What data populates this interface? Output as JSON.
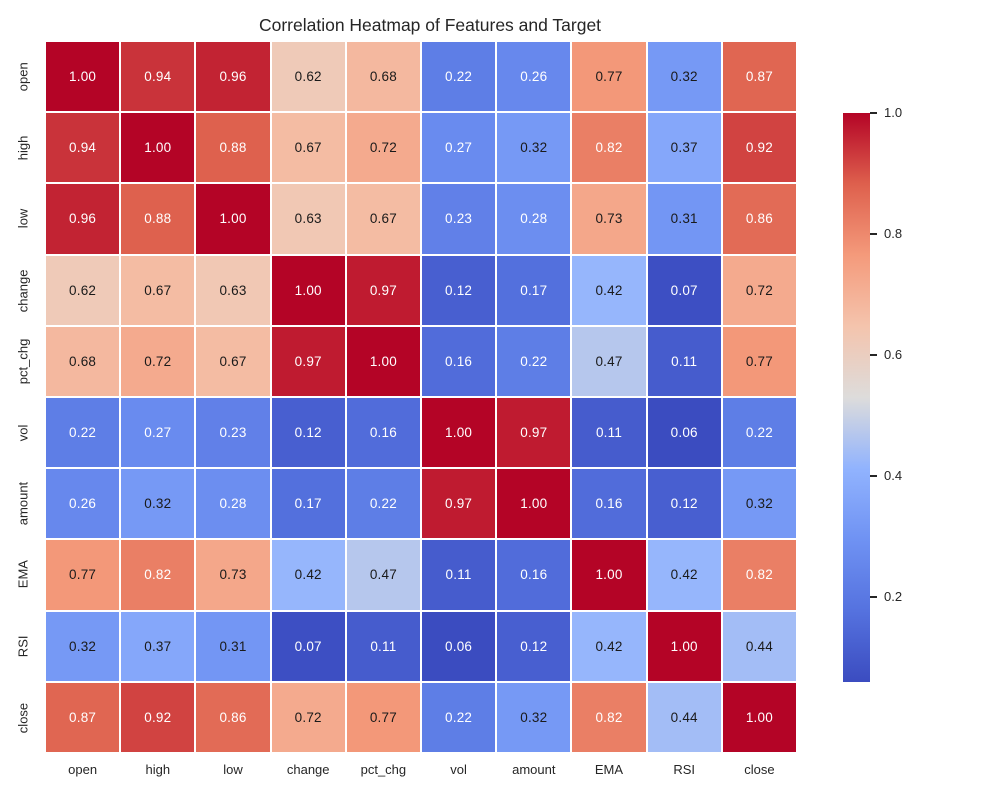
{
  "figure": {
    "background": "#ffffff",
    "text_color": "#262626"
  },
  "chart_data": {
    "type": "heatmap",
    "title": "Correlation Heatmap of Features and Target",
    "categories": [
      "open",
      "high",
      "low",
      "change",
      "pct_chg",
      "vol",
      "amount",
      "EMA",
      "RSI",
      "close"
    ],
    "matrix": [
      [
        1.0,
        0.94,
        0.96,
        0.62,
        0.68,
        0.22,
        0.26,
        0.77,
        0.32,
        0.87
      ],
      [
        0.94,
        1.0,
        0.88,
        0.67,
        0.72,
        0.27,
        0.32,
        0.82,
        0.37,
        0.92
      ],
      [
        0.96,
        0.88,
        1.0,
        0.63,
        0.67,
        0.23,
        0.28,
        0.73,
        0.31,
        0.86
      ],
      [
        0.62,
        0.67,
        0.63,
        1.0,
        0.97,
        0.12,
        0.17,
        0.42,
        0.07,
        0.72
      ],
      [
        0.68,
        0.72,
        0.67,
        0.97,
        1.0,
        0.16,
        0.22,
        0.47,
        0.11,
        0.77
      ],
      [
        0.22,
        0.27,
        0.23,
        0.12,
        0.16,
        1.0,
        0.97,
        0.11,
        0.06,
        0.22
      ],
      [
        0.26,
        0.32,
        0.28,
        0.17,
        0.22,
        0.97,
        1.0,
        0.16,
        0.12,
        0.32
      ],
      [
        0.77,
        0.82,
        0.73,
        0.42,
        0.47,
        0.11,
        0.16,
        1.0,
        0.42,
        0.82
      ],
      [
        0.32,
        0.37,
        0.31,
        0.07,
        0.11,
        0.06,
        0.12,
        0.42,
        1.0,
        0.44
      ],
      [
        0.87,
        0.92,
        0.86,
        0.72,
        0.77,
        0.22,
        0.32,
        0.82,
        0.44,
        1.0
      ]
    ],
    "annotation_format": "x.xx",
    "vmin": 0.06,
    "vmax": 1.0,
    "colormap": "coolwarm",
    "colormap_stops": [
      {
        "t": 0.0,
        "hex": "#3B4CC0"
      },
      {
        "t": 0.125,
        "hex": "#5572DF"
      },
      {
        "t": 0.25,
        "hex": "#6F92F3"
      },
      {
        "t": 0.375,
        "hex": "#91B3FE"
      },
      {
        "t": 0.5,
        "hex": "#DDDCDB"
      },
      {
        "t": 0.625,
        "hex": "#F4C4AD"
      },
      {
        "t": 0.75,
        "hex": "#F49A7B"
      },
      {
        "t": 0.875,
        "hex": "#DE604D"
      },
      {
        "t": 1.0,
        "hex": "#B40426"
      }
    ],
    "annotation_colors": {
      "light": "#ffffff",
      "dark": "#1a1a1a"
    },
    "grid_line_color": "#ffffff",
    "colorbar": {
      "ticks": [
        1.0,
        0.8,
        0.6,
        0.4,
        0.2
      ],
      "tick_labels": [
        "1.0",
        "0.8",
        "0.6",
        "0.4",
        "0.2"
      ],
      "legend_position": "right"
    },
    "layout": {
      "grid_on": false
    }
  }
}
